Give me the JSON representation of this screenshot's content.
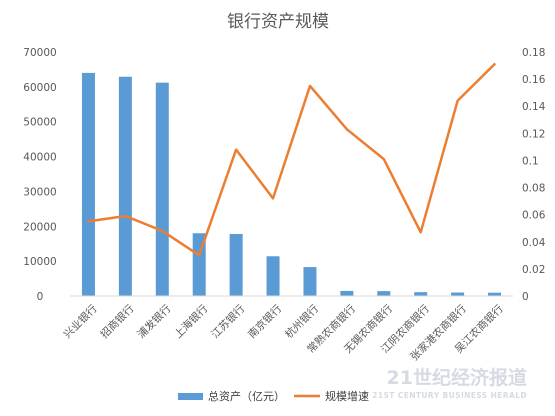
{
  "chart_data": {
    "type": "bar+line",
    "title": "银行资产规模",
    "categories": [
      "兴业银行",
      "招商银行",
      "浦发银行",
      "上海银行",
      "江苏银行",
      "南京银行",
      "杭州银行",
      "常熟农商银行",
      "无锡农商银行",
      "江阴农商银行",
      "张家港农商银行",
      "吴江农商银行"
    ],
    "series": [
      {
        "name": "总资产（亿元）",
        "type": "bar",
        "axis": "left",
        "color": "#5B9BD5",
        "values": [
          64000,
          62900,
          61200,
          18000,
          17800,
          11400,
          8300,
          1450,
          1400,
          1100,
          1000,
          950
        ]
      },
      {
        "name": "规模增速",
        "type": "line",
        "axis": "right",
        "color": "#ED7D31",
        "values": [
          0.055,
          0.059,
          0.048,
          0.03,
          0.108,
          0.072,
          0.155,
          0.123,
          0.101,
          0.047,
          0.144,
          0.171
        ]
      }
    ],
    "y_left": {
      "min": 0,
      "max": 70000,
      "step": 10000,
      "ticks": [
        "0",
        "10000",
        "20000",
        "30000",
        "40000",
        "50000",
        "60000",
        "70000"
      ]
    },
    "y_right": {
      "min": 0,
      "max": 0.18,
      "step": 0.02,
      "ticks": [
        "0",
        "0.02",
        "0.04",
        "0.06",
        "0.08",
        "0.1",
        "0.12",
        "0.14",
        "0.16",
        "0.18"
      ]
    },
    "grid": false,
    "legend_position": "bottom"
  },
  "watermark": {
    "main": "21世纪经济报道",
    "sub": "21ST CENTURY BUSINESS HERALD"
  }
}
